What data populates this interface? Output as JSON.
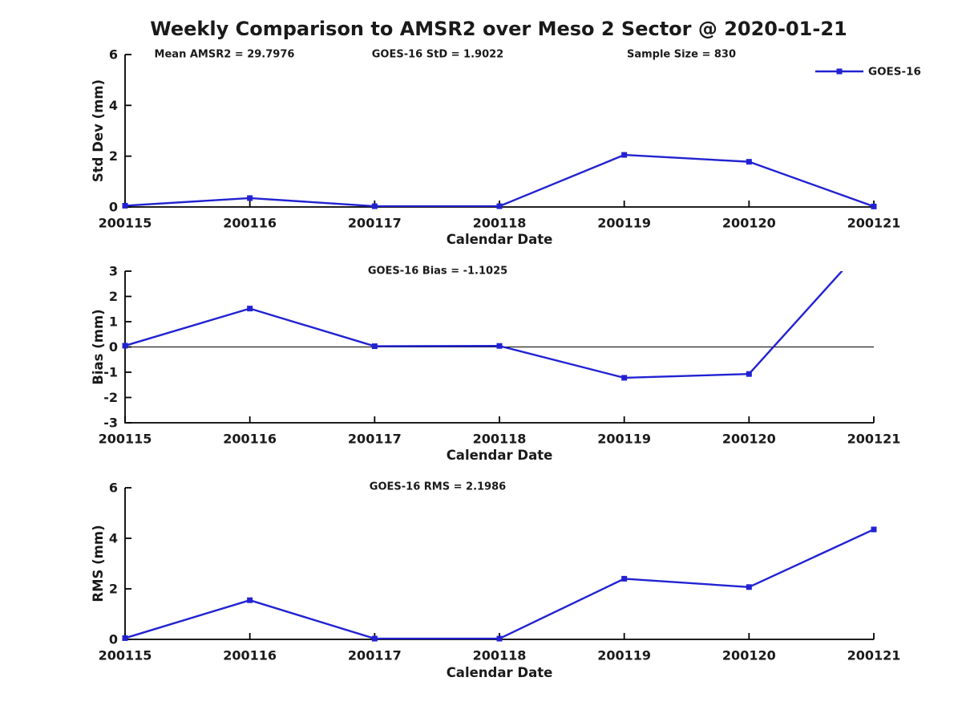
{
  "title": "Weekly Comparison to AMSR2 over Meso 2 Sector @ 2020-01-21",
  "colors": {
    "line": "#2222d2",
    "axis": "#000000",
    "text": "#1a1a1a"
  },
  "legend": {
    "label": "GOES-16"
  },
  "stats": {
    "mean_amsr2": 29.7976,
    "goes16_std": 1.9022,
    "sample_size": 830,
    "goes16_bias": -1.1025,
    "goes16_rms": 2.1986
  },
  "chart_data": [
    {
      "type": "line",
      "title": "",
      "xlabel": "Calendar Date",
      "ylabel": "Std Dev (mm)",
      "annotations": [
        "Mean AMSR2 = 29.7976",
        "GOES-16 StD = 1.9022",
        "Sample Size = 830"
      ],
      "categories": [
        "200115",
        "200116",
        "200117",
        "200118",
        "200119",
        "200120",
        "200121"
      ],
      "series": [
        {
          "name": "GOES-16",
          "values": [
            0.05,
            0.35,
            0.03,
            0.03,
            2.05,
            1.78,
            0.02
          ]
        }
      ],
      "ylim": [
        0,
        6
      ],
      "yticks": [
        0,
        2,
        4,
        6
      ],
      "zero_line": false,
      "grid": false,
      "legend_position": "top-right"
    },
    {
      "type": "line",
      "title": "",
      "xlabel": "Calendar Date",
      "ylabel": "Bias (mm)",
      "annotations": [
        "GOES-16 Bias  = -1.1025"
      ],
      "categories": [
        "200115",
        "200116",
        "200117",
        "200118",
        "200119",
        "200120",
        "200121"
      ],
      "series": [
        {
          "name": "GOES-16",
          "values": [
            0.05,
            1.52,
            0.03,
            0.04,
            -1.22,
            -1.07,
            4.4
          ]
        }
      ],
      "ylim": [
        -3,
        3
      ],
      "yticks": [
        -3,
        -2,
        -1,
        0,
        1,
        2,
        3
      ],
      "zero_line": true,
      "grid": false,
      "legend_position": "none",
      "note": "last value exceeds ylim and is clipped at top of axes"
    },
    {
      "type": "line",
      "title": "",
      "xlabel": "Calendar Date",
      "ylabel": "RMS (mm)",
      "annotations": [
        "GOES-16 RMS = 2.1986"
      ],
      "categories": [
        "200115",
        "200116",
        "200117",
        "200118",
        "200119",
        "200120",
        "200121"
      ],
      "series": [
        {
          "name": "GOES-16",
          "values": [
            0.05,
            1.55,
            0.03,
            0.03,
            2.4,
            2.07,
            4.35
          ]
        }
      ],
      "ylim": [
        0,
        6
      ],
      "yticks": [
        0,
        2,
        4,
        6
      ],
      "zero_line": false,
      "grid": false,
      "legend_position": "none"
    }
  ]
}
